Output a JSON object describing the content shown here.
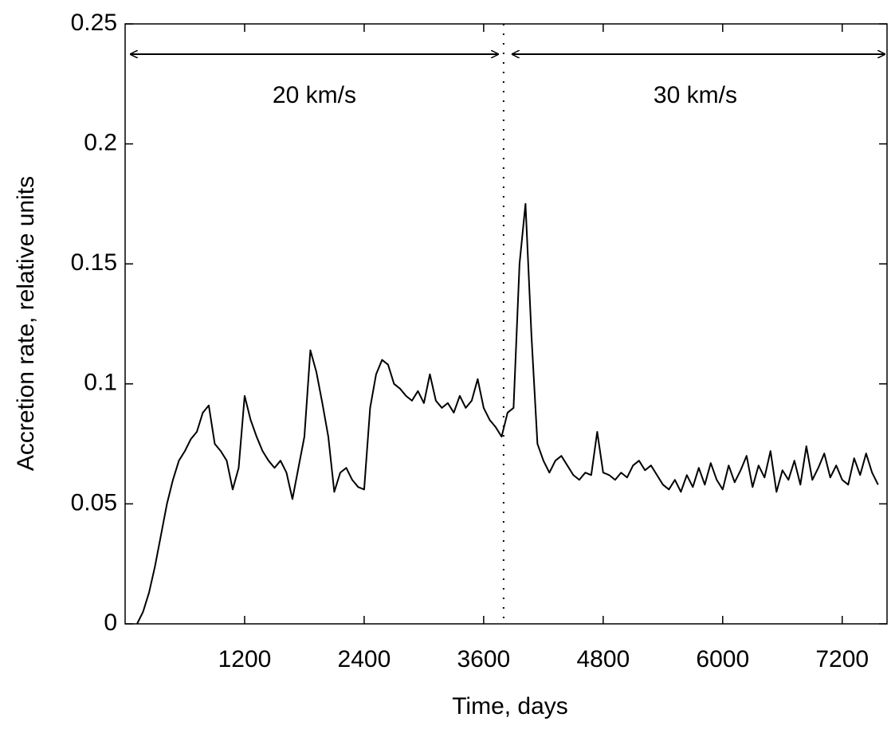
{
  "chart_data": {
    "type": "line",
    "xlabel": "Time, days",
    "ylabel": "Accretion rate, relative units",
    "annotations": [
      "20 km/s",
      "30 km/s"
    ],
    "divider_x": 3800,
    "xlim": [
      0,
      7650
    ],
    "xticks": [
      1200,
      2400,
      3600,
      4800,
      6000,
      7200
    ],
    "ylim": [
      0,
      0.25
    ],
    "yticks": [
      0,
      0.05,
      0.1,
      0.15,
      0.2,
      0.25
    ],
    "grid": false,
    "x": [
      120,
      180,
      240,
      300,
      360,
      420,
      480,
      540,
      600,
      660,
      720,
      780,
      840,
      900,
      960,
      1020,
      1080,
      1140,
      1200,
      1260,
      1320,
      1380,
      1440,
      1500,
      1560,
      1620,
      1680,
      1740,
      1800,
      1860,
      1920,
      1980,
      2040,
      2100,
      2160,
      2220,
      2280,
      2340,
      2400,
      2460,
      2520,
      2580,
      2640,
      2700,
      2760,
      2820,
      2880,
      2940,
      3000,
      3060,
      3120,
      3180,
      3240,
      3300,
      3360,
      3420,
      3480,
      3540,
      3600,
      3660,
      3720,
      3780,
      3840,
      3900,
      3960,
      4020,
      4080,
      4140,
      4200,
      4260,
      4320,
      4380,
      4440,
      4500,
      4560,
      4620,
      4680,
      4740,
      4800,
      4860,
      4920,
      4980,
      5040,
      5100,
      5160,
      5220,
      5280,
      5340,
      5400,
      5460,
      5520,
      5580,
      5640,
      5700,
      5760,
      5820,
      5880,
      5940,
      6000,
      6060,
      6120,
      6180,
      6240,
      6300,
      6360,
      6420,
      6480,
      6540,
      6600,
      6660,
      6720,
      6780,
      6840,
      6900,
      6960,
      7020,
      7080,
      7140,
      7200,
      7260,
      7320,
      7380,
      7440,
      7500,
      7560
    ],
    "series": [
      {
        "color": "#000000",
        "values": [
          0,
          0.005,
          0.013,
          0.024,
          0.037,
          0.05,
          0.06,
          0.068,
          0.072,
          0.077,
          0.08,
          0.088,
          0.091,
          0.075,
          0.072,
          0.068,
          0.056,
          0.065,
          0.095,
          0.085,
          0.078,
          0.072,
          0.068,
          0.065,
          0.068,
          0.063,
          0.052,
          0.065,
          0.078,
          0.114,
          0.105,
          0.092,
          0.078,
          0.055,
          0.063,
          0.065,
          0.06,
          0.057,
          0.056,
          0.09,
          0.104,
          0.11,
          0.108,
          0.1,
          0.098,
          0.095,
          0.093,
          0.097,
          0.092,
          0.104,
          0.093,
          0.09,
          0.092,
          0.088,
          0.095,
          0.09,
          0.093,
          0.102,
          0.09,
          0.085,
          0.082,
          0.078,
          0.088,
          0.09,
          0.15,
          0.175,
          0.12,
          0.075,
          0.068,
          0.063,
          0.068,
          0.07,
          0.066,
          0.062,
          0.06,
          0.063,
          0.062,
          0.08,
          0.063,
          0.062,
          0.06,
          0.063,
          0.061,
          0.066,
          0.068,
          0.064,
          0.066,
          0.062,
          0.058,
          0.056,
          0.06,
          0.055,
          0.062,
          0.057,
          0.065,
          0.058,
          0.067,
          0.06,
          0.056,
          0.066,
          0.059,
          0.064,
          0.07,
          0.057,
          0.066,
          0.061,
          0.072,
          0.055,
          0.064,
          0.06,
          0.068,
          0.058,
          0.074,
          0.06,
          0.065,
          0.071,
          0.061,
          0.066,
          0.06,
          0.058,
          0.069,
          0.062,
          0.071,
          0.063,
          0.058
        ]
      }
    ]
  }
}
